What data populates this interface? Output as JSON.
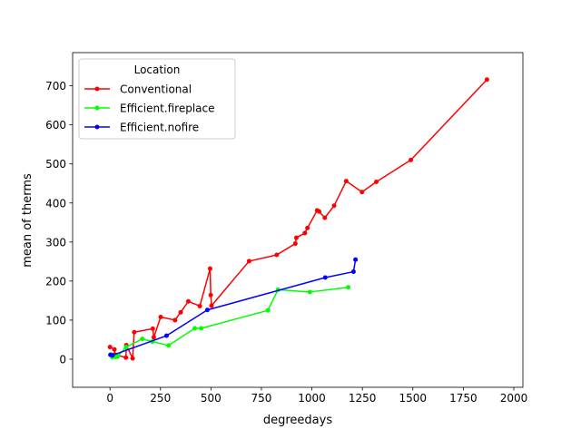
{
  "chart_data": {
    "type": "line",
    "xlabel": "degreedays",
    "ylabel": "mean of therms",
    "xlim": [
      -185,
      2045
    ],
    "ylim": [
      -72,
      785
    ],
    "xticks": [
      0,
      250,
      500,
      750,
      1000,
      1250,
      1500,
      1750,
      2000
    ],
    "xtick_labels": [
      "0",
      "250",
      "500",
      "750",
      "1000",
      "1250",
      "1500",
      "1750",
      "2000"
    ],
    "yticks": [
      0,
      100,
      200,
      300,
      400,
      500,
      600,
      700
    ],
    "ytick_labels": [
      "0",
      "100",
      "200",
      "300",
      "400",
      "500",
      "600",
      "700"
    ],
    "grid": false,
    "legend": {
      "title": "Location",
      "position": "top-left"
    },
    "series": [
      {
        "name": "Conventional",
        "color": "#ff0000",
        "points": [
          [
            0,
            31
          ],
          [
            22,
            25
          ],
          [
            24,
            12
          ],
          [
            79,
            4
          ],
          [
            81,
            36
          ],
          [
            112,
            2
          ],
          [
            120,
            69
          ],
          [
            212,
            78
          ],
          [
            217,
            56
          ],
          [
            251,
            108
          ],
          [
            322,
            100
          ],
          [
            350,
            120
          ],
          [
            388,
            148
          ],
          [
            445,
            136
          ],
          [
            496,
            232
          ],
          [
            499,
            164
          ],
          [
            503,
            137
          ],
          [
            689,
            251
          ],
          [
            826,
            267
          ],
          [
            918,
            296
          ],
          [
            923,
            311
          ],
          [
            965,
            323
          ],
          [
            978,
            336
          ],
          [
            1026,
            381
          ],
          [
            1036,
            378
          ],
          [
            1064,
            362
          ],
          [
            1110,
            393
          ],
          [
            1170,
            456
          ],
          [
            1248,
            428
          ],
          [
            1319,
            454
          ],
          [
            1490,
            510
          ],
          [
            1867,
            716
          ]
        ]
      },
      {
        "name": "Efficient.fireplace",
        "color": "#00ff00",
        "points": [
          [
            5,
            12
          ],
          [
            12,
            5
          ],
          [
            20,
            8
          ],
          [
            28,
            6
          ],
          [
            38,
            7
          ],
          [
            80,
            31
          ],
          [
            160,
            52
          ],
          [
            210,
            45
          ],
          [
            290,
            35
          ],
          [
            420,
            79
          ],
          [
            452,
            79
          ],
          [
            782,
            125
          ],
          [
            832,
            178
          ],
          [
            990,
            172
          ],
          [
            1180,
            184
          ]
        ]
      },
      {
        "name": "Efficient.nofire",
        "color": "#0000ff",
        "points": [
          [
            2,
            11
          ],
          [
            12,
            10
          ],
          [
            280,
            60
          ],
          [
            482,
            126
          ],
          [
            1066,
            209
          ],
          [
            1206,
            224
          ],
          [
            1216,
            255
          ]
        ]
      }
    ]
  }
}
